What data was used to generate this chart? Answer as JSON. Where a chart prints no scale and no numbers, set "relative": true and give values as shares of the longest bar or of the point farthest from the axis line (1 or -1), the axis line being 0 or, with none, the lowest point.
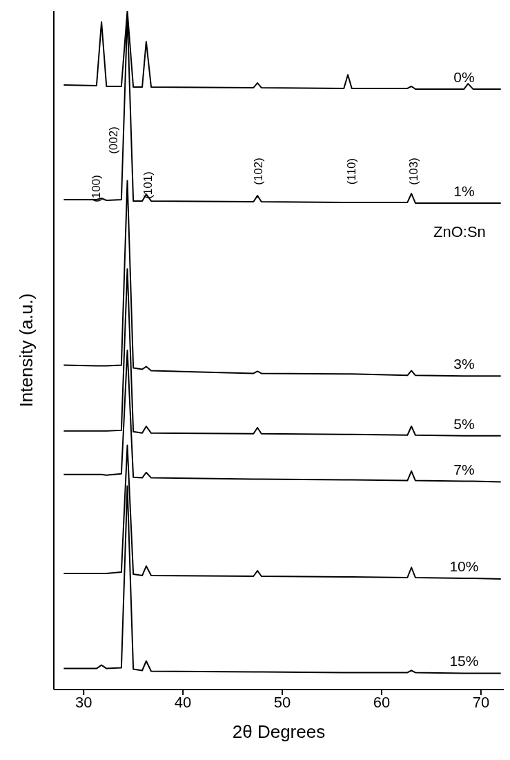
{
  "chart_data": {
    "type": "line",
    "xlabel": "2θ Degrees",
    "ylabel": "Intensity (a.u.)",
    "relative": true,
    "xlim": [
      27,
      72.3
    ],
    "xticks": [
      30,
      40,
      50,
      60,
      70
    ],
    "x": [
      28,
      31.3,
      31.8,
      32.3,
      33.8,
      34.4,
      35.0,
      35.9,
      36.3,
      36.8,
      47.1,
      47.5,
      47.9,
      56.2,
      56.6,
      57.0,
      62.6,
      63.0,
      63.4,
      68.3,
      68.7,
      69.2,
      72
    ],
    "series": [
      {
        "name": "0%",
        "color": "#000000",
        "values": [
          0.891,
          0.89,
          0.984,
          0.889,
          0.889,
          1,
          0.888,
          0.888,
          0.955,
          0.888,
          0.887,
          0.894,
          0.887,
          0.886,
          0.906,
          0.886,
          0.886,
          0.889,
          0.885,
          0.885,
          0.893,
          0.885,
          0.885
        ]
      },
      {
        "name": "1%",
        "color": "#000000",
        "values": [
          0.722,
          0.722,
          0.724,
          0.721,
          0.722,
          0.995,
          0.72,
          0.72,
          0.73,
          0.72,
          0.719,
          0.728,
          0.719,
          0.718,
          0.718,
          0.718,
          0.718,
          0.731,
          0.717,
          0.717,
          0.717,
          0.717,
          0.717
        ]
      },
      {
        "name": "3%",
        "color": "#000000",
        "values": [
          0.478,
          0.477,
          0.477,
          0.477,
          0.478,
          0.75,
          0.474,
          0.472,
          0.476,
          0.47,
          0.466,
          0.469,
          0.466,
          0.465,
          0.465,
          0.465,
          0.463,
          0.47,
          0.463,
          0.462,
          0.462,
          0.462,
          0.462
        ]
      },
      {
        "name": "5%",
        "color": "#000000",
        "values": [
          0.381,
          0.381,
          0.381,
          0.381,
          0.382,
          0.62,
          0.38,
          0.378,
          0.388,
          0.378,
          0.377,
          0.386,
          0.377,
          0.376,
          0.376,
          0.376,
          0.375,
          0.388,
          0.375,
          0.374,
          0.374,
          0.374,
          0.374
        ]
      },
      {
        "name": "7%",
        "color": "#000000",
        "values": [
          0.317,
          0.317,
          0.317,
          0.316,
          0.318,
          0.5,
          0.313,
          0.312,
          0.32,
          0.312,
          0.31,
          0.31,
          0.31,
          0.309,
          0.309,
          0.309,
          0.308,
          0.322,
          0.308,
          0.307,
          0.307,
          0.307,
          0.306
        ]
      },
      {
        "name": "10%",
        "color": "#000000",
        "values": [
          0.171,
          0.171,
          0.171,
          0.171,
          0.173,
          0.36,
          0.17,
          0.168,
          0.182,
          0.168,
          0.167,
          0.175,
          0.167,
          0.166,
          0.166,
          0.166,
          0.165,
          0.18,
          0.165,
          0.164,
          0.164,
          0.164,
          0.163
        ]
      },
      {
        "name": "15%",
        "color": "#000000",
        "values": [
          0.031,
          0.031,
          0.036,
          0.031,
          0.032,
          0.3,
          0.03,
          0.028,
          0.042,
          0.027,
          0.026,
          0.026,
          0.026,
          0.025,
          0.025,
          0.025,
          0.025,
          0.028,
          0.025,
          0.024,
          0.024,
          0.024,
          0.024
        ]
      }
    ],
    "annotations": [
      "(100)",
      "(002)",
      "(101)",
      "(102)",
      "(110)",
      "(103)",
      "ZnO:Sn"
    ],
    "legend": false,
    "grid": false,
    "marker": "none",
    "line_style": "solid"
  }
}
